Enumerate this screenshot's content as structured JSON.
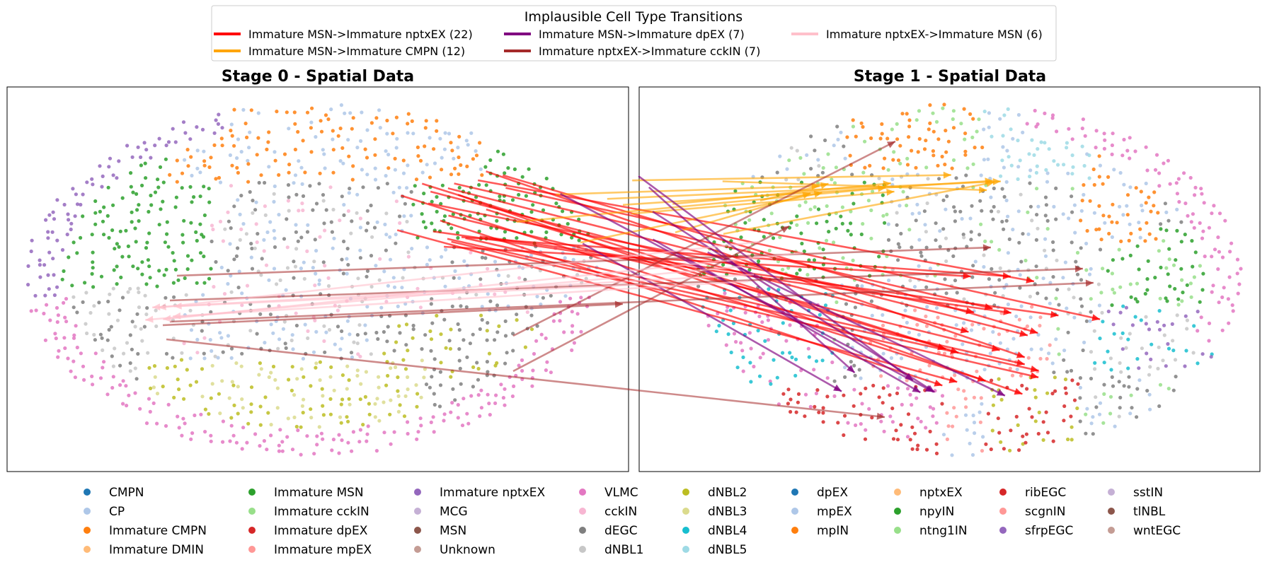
{
  "chart_data": {
    "type": "scatter",
    "transition_legend": {
      "title": "Implausible Cell Type Transitions",
      "entries": [
        {
          "label": "Immature MSN->Immature nptxEX (22)",
          "color": "#ff0000",
          "count": 22
        },
        {
          "label": "Immature MSN->Immature CMPN (12)",
          "color": "#ffa500",
          "count": 12
        },
        {
          "label": "Immature MSN->Immature dpEX (7)",
          "color": "#800080",
          "count": 7
        },
        {
          "label": "Immature nptxEX->Immature cckIN (7)",
          "color": "#a52a2a",
          "count": 7
        },
        {
          "label": "Immature nptxEX->Immature MSN (6)",
          "color": "#ffc0cb",
          "count": 6
        }
      ]
    },
    "panels": [
      {
        "title": "Stage 0 - Spatial Data"
      },
      {
        "title": "Stage 1 - Spatial Data"
      }
    ],
    "cell_types": [
      {
        "name": "CMPN",
        "color": "#1f77b4"
      },
      {
        "name": "CP",
        "color": "#aec7e8"
      },
      {
        "name": "Immature CMPN",
        "color": "#ff7f0e"
      },
      {
        "name": "Immature DMIN",
        "color": "#ffbb78"
      },
      {
        "name": "Immature MSN",
        "color": "#2ca02c"
      },
      {
        "name": "Immature cckIN",
        "color": "#98df8a"
      },
      {
        "name": "Immature dpEX",
        "color": "#d62728"
      },
      {
        "name": "Immature mpEX",
        "color": "#ff9896"
      },
      {
        "name": "Immature nptxEX",
        "color": "#9467bd"
      },
      {
        "name": "MCG",
        "color": "#c5b0d5"
      },
      {
        "name": "MSN",
        "color": "#8c564b"
      },
      {
        "name": "Unknown",
        "color": "#c49c94"
      },
      {
        "name": "VLMC",
        "color": "#e377c2"
      },
      {
        "name": "cckIN",
        "color": "#f7b6d2"
      },
      {
        "name": "dEGC",
        "color": "#7f7f7f"
      },
      {
        "name": "dNBL1",
        "color": "#c7c7c7"
      },
      {
        "name": "dNBL2",
        "color": "#bcbd22"
      },
      {
        "name": "dNBL3",
        "color": "#dbdb8d"
      },
      {
        "name": "dNBL4",
        "color": "#17becf"
      },
      {
        "name": "dNBL5",
        "color": "#9edae5"
      },
      {
        "name": "dpEX",
        "color": "#1f77b4"
      },
      {
        "name": "mpEX",
        "color": "#aec7e8"
      },
      {
        "name": "mpIN",
        "color": "#ff7f0e"
      },
      {
        "name": "nptxEX",
        "color": "#ffbb78"
      },
      {
        "name": "npyIN",
        "color": "#2ca02c"
      },
      {
        "name": "ntng1IN",
        "color": "#98df8a"
      },
      {
        "name": "ribEGC",
        "color": "#d62728"
      },
      {
        "name": "scgnIN",
        "color": "#ff9896"
      },
      {
        "name": "sfrpEGC",
        "color": "#9467bd"
      },
      {
        "name": "sstIN",
        "color": "#c5b0d5"
      },
      {
        "name": "tlNBL",
        "color": "#8c564b"
      },
      {
        "name": "wntEGC",
        "color": "#c49c94"
      }
    ],
    "axes": "hidden"
  }
}
